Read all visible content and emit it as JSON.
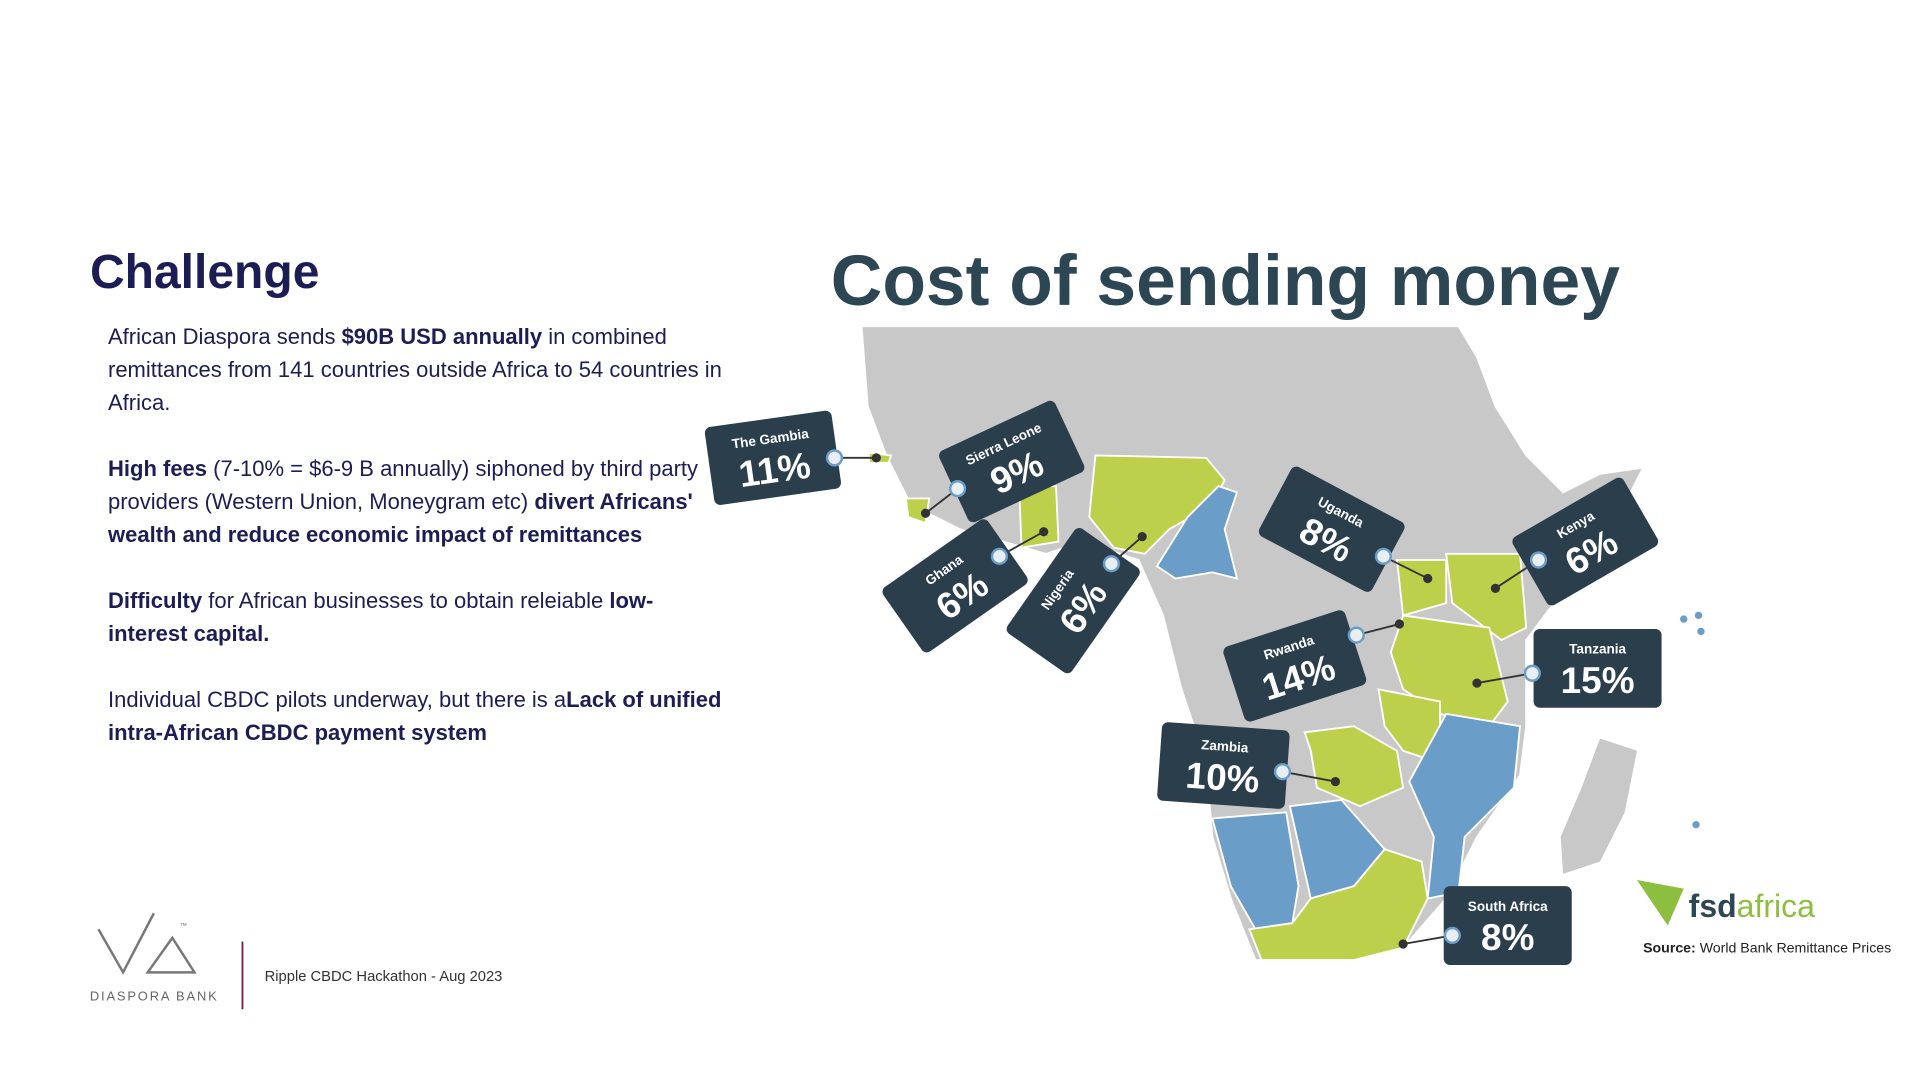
{
  "left": {
    "heading": "Challenge",
    "paragraphs": [
      [
        {
          "text": "African Diaspora sends ",
          "bold": false
        },
        {
          "text": "$90B USD annually",
          "bold": true
        },
        {
          "text": " in combined remittances from 141 countries outside Africa to 54 countries in Africa.",
          "bold": false
        }
      ],
      [
        {
          "text": "High fees",
          "bold": true
        },
        {
          "text": " (7-10% = $6-9 B annually) siphoned by third party providers (Western Union, Moneygram etc) ",
          "bold": false
        },
        {
          "text": "divert Africans' wealth and reduce economic impact of remittances",
          "bold": true
        }
      ],
      [
        {
          "text": "Difficulty",
          "bold": true
        },
        {
          "text": " for African businesses to obtain releiable ",
          "bold": false
        },
        {
          "text": "low-interest capital.",
          "bold": true
        }
      ],
      [
        {
          "text": "Individual CBDC pilots underway, but there is a",
          "bold": false
        },
        {
          "text": "Lack of unified intra-African CBDC payment system",
          "bold": true
        }
      ]
    ]
  },
  "map": {
    "title": "Cost of sending money",
    "tags": [
      {
        "country": "The Gambia",
        "cost": "11%"
      },
      {
        "country": "Sierra Leone",
        "cost": "9%"
      },
      {
        "country": "Ghana",
        "cost": "6%"
      },
      {
        "country": "Nigeria",
        "cost": "6%"
      },
      {
        "country": "Uganda",
        "cost": "8%"
      },
      {
        "country": "Kenya",
        "cost": "6%"
      },
      {
        "country": "Rwanda",
        "cost": "14%"
      },
      {
        "country": "Tanzania",
        "cost": "15%"
      },
      {
        "country": "Zambia",
        "cost": "10%"
      },
      {
        "country": "South Africa",
        "cost": "8%"
      }
    ],
    "logo": {
      "part1": "fsd",
      "part2": "africa"
    },
    "source": {
      "label": "Source:",
      "text": "World Bank Remittance Prices"
    }
  },
  "footer": {
    "brand": "DIASPORA BANK",
    "trademark": "™",
    "event": "Ripple CBDC Hackathon - Aug 2023"
  }
}
